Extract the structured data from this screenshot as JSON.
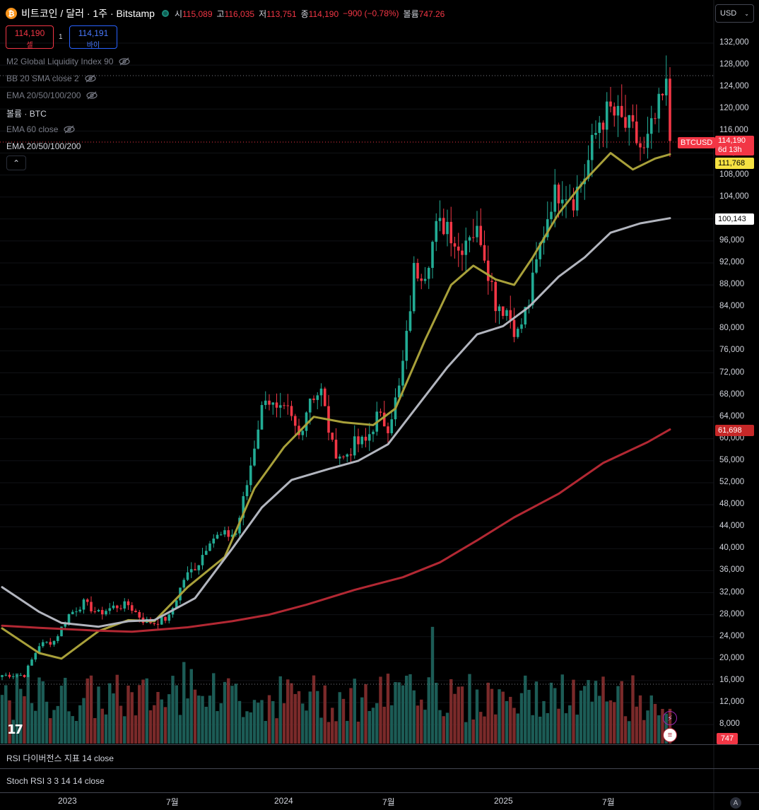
{
  "header": {
    "symbol_title": "비트코인 / 달러 · 1주 · Bitstamp",
    "coin_glyph": "₿",
    "ohlc": [
      {
        "label": "시",
        "value": "115,089"
      },
      {
        "label": "고",
        "value": "116,035"
      },
      {
        "label": "저",
        "value": "113,751"
      },
      {
        "label": "종",
        "value": "114,190"
      }
    ],
    "change": "−900 (−0.78%)",
    "volume_label": "볼륨",
    "volume_value": "747.26",
    "currency": "USD"
  },
  "trade": {
    "sell_price": "114,190",
    "sell_label": "셀",
    "spread": "1",
    "buy_price": "114,191",
    "buy_label": "바이"
  },
  "indicators": [
    {
      "label": "M2 Global Liquidity Index 90",
      "hidden": true
    },
    {
      "label": "BB 20 SMA close 2",
      "hidden": true
    },
    {
      "label": "EMA 20/50/100/200",
      "hidden": true
    },
    {
      "label": "볼륨 · BTC",
      "hidden": false
    },
    {
      "label": "EMA 60 close",
      "hidden": true
    },
    {
      "label": "EMA 20/50/100/200",
      "hidden": false
    }
  ],
  "price_axis": [
    "132,000",
    "128,000",
    "124,000",
    "120,000",
    "116,000",
    "112,000",
    "108,000",
    "104,000",
    "100,000",
    "96,000",
    "92,000",
    "88,000",
    "84,000",
    "80,000",
    "76,000",
    "72,000",
    "68,000",
    "64,000",
    "60,000",
    "56,000",
    "52,000",
    "48,000",
    "44,000",
    "40,000",
    "36,000",
    "32,000",
    "28,000",
    "24,000",
    "20,000",
    "16,000",
    "12,000",
    "8,000"
  ],
  "price_tags": {
    "symbol": "BTCUSD",
    "last": "114,190",
    "countdown": "6d 13h",
    "ema20": "111,768",
    "ema50": "100,143",
    "ema200": "61,698",
    "volume": "747"
  },
  "time_axis": [
    "2023",
    "7월",
    "2024",
    "7월",
    "2025",
    "7월"
  ],
  "panes": {
    "rsi_label": "RSI 다이버전스 지표 14 close",
    "stoch_label": "Stoch RSI 3 3 14 14 close"
  },
  "colors": {
    "up": "#22ab94",
    "down": "#f23645",
    "vol_up": "#1c5c56",
    "vol_down": "#7a2a2a",
    "ema20": "#a8a03a",
    "ema50": "#b2b5be",
    "ema200": "#b22833"
  },
  "chart_data": {
    "type": "candlestick",
    "title": "비트코인 / 달러 · 1주 · Bitstamp",
    "ylim": [
      6000,
      134000
    ],
    "x_ticks": [
      "2023",
      "7월",
      "2024",
      "7월",
      "2025",
      "7월"
    ],
    "anchors": [
      [
        0,
        17000
      ],
      [
        6,
        17000
      ],
      [
        10,
        22500
      ],
      [
        14,
        23200
      ],
      [
        18,
        28000
      ],
      [
        22,
        30100
      ],
      [
        26,
        28200
      ],
      [
        30,
        29400
      ],
      [
        34,
        29800
      ],
      [
        38,
        27000
      ],
      [
        41,
        26500
      ],
      [
        45,
        27500
      ],
      [
        49,
        34500
      ],
      [
        53,
        37500
      ],
      [
        56,
        41900
      ],
      [
        60,
        42400
      ],
      [
        63,
        42800
      ],
      [
        66,
        51700
      ],
      [
        69,
        62500
      ],
      [
        71,
        68200
      ],
      [
        74,
        64500
      ],
      [
        77,
        64800
      ],
      [
        80,
        60500
      ],
      [
        83,
        67800
      ],
      [
        86,
        68500
      ],
      [
        89,
        58500
      ],
      [
        92,
        56500
      ],
      [
        95,
        59000
      ],
      [
        98,
        59400
      ],
      [
        101,
        64000
      ],
      [
        104,
        62500
      ],
      [
        107,
        69000
      ],
      [
        109,
        78200
      ],
      [
        111,
        90500
      ],
      [
        114,
        91000
      ],
      [
        117,
        98000
      ],
      [
        120,
        99500
      ],
      [
        123,
        94300
      ],
      [
        126,
        98000
      ],
      [
        129,
        97000
      ],
      [
        133,
        85000
      ],
      [
        136,
        83500
      ],
      [
        139,
        79000
      ],
      [
        142,
        85000
      ],
      [
        145,
        95000
      ],
      [
        148,
        103500
      ],
      [
        151,
        105800
      ],
      [
        154,
        104000
      ],
      [
        157,
        108000
      ],
      [
        161,
        118000
      ],
      [
        164,
        119500
      ],
      [
        167,
        117500
      ],
      [
        170,
        115500
      ],
      [
        173,
        111800
      ],
      [
        176,
        118000
      ],
      [
        179,
        123500
      ],
      [
        180,
        114190
      ]
    ],
    "series": [
      {
        "name": "EMA 20",
        "color": "#a8a03a",
        "points": [
          [
            0,
            25500
          ],
          [
            10,
            21000
          ],
          [
            16,
            20000
          ],
          [
            26,
            25000
          ],
          [
            34,
            27000
          ],
          [
            41,
            26800
          ],
          [
            50,
            33000
          ],
          [
            60,
            38500
          ],
          [
            68,
            51000
          ],
          [
            76,
            58500
          ],
          [
            84,
            64000
          ],
          [
            92,
            63000
          ],
          [
            100,
            62500
          ],
          [
            106,
            65500
          ],
          [
            114,
            78000
          ],
          [
            121,
            88000
          ],
          [
            127,
            91500
          ],
          [
            133,
            89000
          ],
          [
            138,
            88000
          ],
          [
            143,
            93000
          ],
          [
            150,
            101000
          ],
          [
            157,
            107000
          ],
          [
            164,
            112000
          ],
          [
            170,
            109000
          ],
          [
            176,
            111000
          ],
          [
            180,
            111768
          ]
        ]
      },
      {
        "name": "EMA 50",
        "color": "#b2b5be",
        "points": [
          [
            0,
            33000
          ],
          [
            10,
            28500
          ],
          [
            16,
            26500
          ],
          [
            26,
            25800
          ],
          [
            34,
            26800
          ],
          [
            41,
            27000
          ],
          [
            52,
            31000
          ],
          [
            62,
            40000
          ],
          [
            70,
            47500
          ],
          [
            78,
            52500
          ],
          [
            88,
            54500
          ],
          [
            96,
            56000
          ],
          [
            104,
            59000
          ],
          [
            112,
            66000
          ],
          [
            120,
            73000
          ],
          [
            128,
            79000
          ],
          [
            135,
            80500
          ],
          [
            142,
            84000
          ],
          [
            150,
            89500
          ],
          [
            157,
            93000
          ],
          [
            164,
            97500
          ],
          [
            172,
            99200
          ],
          [
            180,
            100143
          ]
        ]
      },
      {
        "name": "EMA 200",
        "color": "#b22833",
        "points": [
          [
            0,
            26000
          ],
          [
            10,
            25600
          ],
          [
            25,
            25100
          ],
          [
            35,
            24900
          ],
          [
            50,
            25700
          ],
          [
            62,
            26800
          ],
          [
            72,
            28000
          ],
          [
            82,
            29800
          ],
          [
            95,
            32500
          ],
          [
            108,
            34800
          ],
          [
            118,
            37500
          ],
          [
            128,
            41500
          ],
          [
            138,
            45700
          ],
          [
            150,
            50000
          ],
          [
            162,
            55600
          ],
          [
            174,
            59400
          ],
          [
            180,
            61698
          ]
        ]
      }
    ]
  }
}
